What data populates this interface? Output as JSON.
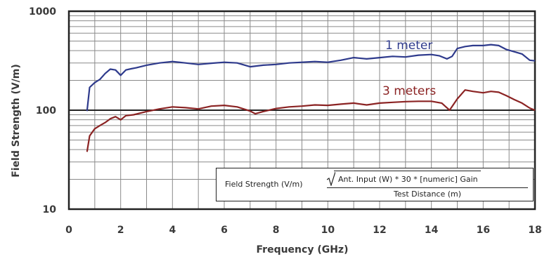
{
  "chart_data": {
    "type": "line",
    "xlabel": "Frequency (GHz)",
    "ylabel": "Field Strength (V/m)",
    "x_ticks": [
      "0",
      "2",
      "4",
      "6",
      "8",
      "10",
      "12",
      "14",
      "16",
      "18"
    ],
    "y_ticks": [
      "10",
      "100",
      "1000"
    ],
    "xlim": [
      0,
      18
    ],
    "ylim": [
      10,
      1000
    ],
    "y_scale": "log",
    "grid": true,
    "series": [
      {
        "name": "1 meter",
        "color": "#2e3a8c",
        "x": [
          0.7,
          0.8,
          1.0,
          1.2,
          1.4,
          1.6,
          1.8,
          2.0,
          2.2,
          2.4,
          2.6,
          3.0,
          3.5,
          4.0,
          4.5,
          5.0,
          5.5,
          6.0,
          6.5,
          7.0,
          7.5,
          8.0,
          8.5,
          9.0,
          9.5,
          10.0,
          10.5,
          11.0,
          11.5,
          12.0,
          12.5,
          13.0,
          13.5,
          14.0,
          14.3,
          14.6,
          14.8,
          15.0,
          15.3,
          15.6,
          16.0,
          16.3,
          16.6,
          16.9,
          17.2,
          17.5,
          17.8,
          18.0
        ],
        "y": [
          98,
          170,
          190,
          205,
          235,
          260,
          255,
          225,
          255,
          262,
          268,
          285,
          300,
          310,
          300,
          290,
          298,
          305,
          300,
          275,
          285,
          290,
          300,
          305,
          310,
          305,
          320,
          340,
          330,
          340,
          350,
          345,
          360,
          365,
          355,
          330,
          350,
          420,
          440,
          450,
          450,
          460,
          450,
          410,
          390,
          370,
          320,
          315
        ]
      },
      {
        "name": "3 meters",
        "color": "#8b2323",
        "x": [
          0.7,
          0.8,
          1.0,
          1.2,
          1.4,
          1.6,
          1.8,
          2.0,
          2.2,
          2.5,
          3.0,
          3.5,
          4.0,
          4.5,
          5.0,
          5.5,
          6.0,
          6.5,
          7.0,
          7.2,
          7.5,
          8.0,
          8.5,
          9.0,
          9.5,
          10.0,
          10.5,
          11.0,
          11.5,
          12.0,
          12.5,
          13.0,
          13.5,
          14.0,
          14.4,
          14.7,
          15.0,
          15.3,
          15.6,
          16.0,
          16.3,
          16.6,
          16.9,
          17.2,
          17.5,
          17.8,
          18.0
        ],
        "y": [
          38,
          55,
          65,
          70,
          75,
          82,
          86,
          80,
          88,
          90,
          97,
          103,
          108,
          106,
          103,
          110,
          112,
          108,
          98,
          92,
          97,
          104,
          108,
          110,
          113,
          112,
          115,
          118,
          113,
          118,
          120,
          122,
          123,
          123,
          118,
          100,
          130,
          160,
          155,
          150,
          155,
          152,
          140,
          128,
          118,
          105,
          100
        ]
      }
    ]
  },
  "formula": {
    "lhs": "Field Strength (V/m)",
    "numerator": "Ant. Input (W) * 30 * [numeric] Gain",
    "denominator": "Test Distance (m)"
  }
}
